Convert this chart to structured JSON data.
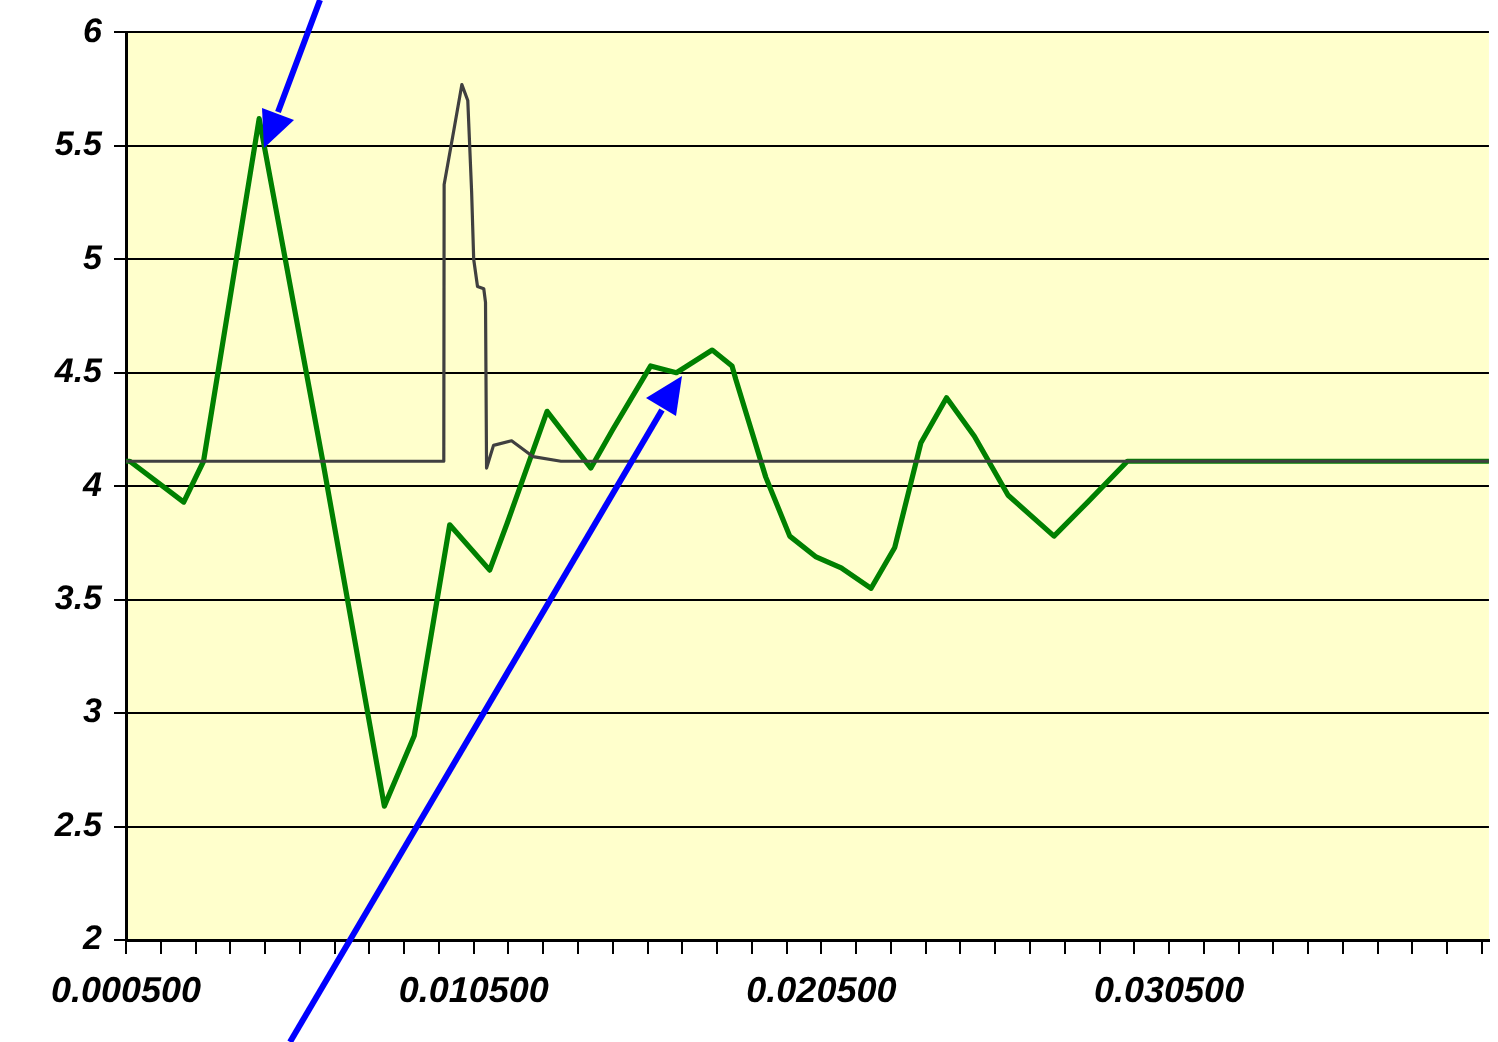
{
  "chart_data": {
    "type": "line",
    "xlim": [
      0.0005,
      0.0397
    ],
    "ylim": [
      2,
      6
    ],
    "yticks": [
      2,
      2.5,
      3,
      3.5,
      4,
      4.5,
      5,
      5.5,
      6
    ],
    "xticks": [
      {
        "value": 0.0005,
        "label": "0.000500"
      },
      {
        "value": 0.0015,
        "label": null
      },
      {
        "value": 0.0025,
        "label": null
      },
      {
        "value": 0.0035,
        "label": null
      },
      {
        "value": 0.0045,
        "label": null
      },
      {
        "value": 0.0055,
        "label": null
      },
      {
        "value": 0.0065,
        "label": null
      },
      {
        "value": 0.0075,
        "label": null
      },
      {
        "value": 0.0085,
        "label": null
      },
      {
        "value": 0.0095,
        "label": null
      },
      {
        "value": 0.0105,
        "label": "0.010500"
      },
      {
        "value": 0.0115,
        "label": null
      },
      {
        "value": 0.0125,
        "label": null
      },
      {
        "value": 0.0135,
        "label": null
      },
      {
        "value": 0.0145,
        "label": null
      },
      {
        "value": 0.0155,
        "label": null
      },
      {
        "value": 0.0165,
        "label": null
      },
      {
        "value": 0.0175,
        "label": null
      },
      {
        "value": 0.0185,
        "label": null
      },
      {
        "value": 0.0195,
        "label": null
      },
      {
        "value": 0.0205,
        "label": "0.020500"
      },
      {
        "value": 0.0215,
        "label": null
      },
      {
        "value": 0.0225,
        "label": null
      },
      {
        "value": 0.0235,
        "label": null
      },
      {
        "value": 0.0245,
        "label": null
      },
      {
        "value": 0.0255,
        "label": null
      },
      {
        "value": 0.0265,
        "label": null
      },
      {
        "value": 0.0275,
        "label": null
      },
      {
        "value": 0.0285,
        "label": null
      },
      {
        "value": 0.0295,
        "label": null
      },
      {
        "value": 0.0305,
        "label": "0.030500"
      },
      {
        "value": 0.0315,
        "label": null
      },
      {
        "value": 0.0325,
        "label": null
      },
      {
        "value": 0.0335,
        "label": null
      },
      {
        "value": 0.0345,
        "label": null
      },
      {
        "value": 0.0355,
        "label": null
      },
      {
        "value": 0.0365,
        "label": null
      },
      {
        "value": 0.0375,
        "label": null
      },
      {
        "value": 0.0385,
        "label": null
      },
      {
        "value": 0.0395,
        "label": null
      }
    ],
    "grid": "y",
    "legend": false,
    "line_style": "solid",
    "series": [
      {
        "color": "#404040",
        "x": [
          0.0005,
          0.00964,
          0.00965,
          0.00993,
          0.01016,
          0.01033,
          0.01044,
          0.0105,
          0.01061,
          0.01079,
          0.01084,
          0.01087,
          0.01107,
          0.01159,
          0.01221,
          0.01301,
          0.0397
        ],
        "values": [
          4.11,
          4.11,
          5.33,
          5.57,
          5.77,
          5.7,
          5.3,
          5.0,
          4.88,
          4.87,
          4.81,
          4.08,
          4.18,
          4.2,
          4.13,
          4.11,
          4.11
        ]
      },
      {
        "color": "#008000",
        "x": [
          0.0005,
          0.00061,
          0.00216,
          0.00273,
          0.00433,
          0.00616,
          0.00793,
          0.00879,
          0.00981,
          0.01096,
          0.01147,
          0.01261,
          0.01387,
          0.0145,
          0.01559,
          0.01633,
          0.01736,
          0.01793,
          0.01804,
          0.0189,
          0.01959,
          0.02033,
          0.02107,
          0.02193,
          0.02261,
          0.02336,
          0.0241,
          0.0249,
          0.02587,
          0.02719,
          0.02816,
          0.0293,
          0.0397
        ],
        "values": [
          4.11,
          4.11,
          3.93,
          4.11,
          5.62,
          4.11,
          2.59,
          2.9,
          3.83,
          3.63,
          3.84,
          4.33,
          4.08,
          4.25,
          4.53,
          4.5,
          4.6,
          4.53,
          4.47,
          4.04,
          3.78,
          3.69,
          3.64,
          3.55,
          3.73,
          4.19,
          4.39,
          4.22,
          3.96,
          3.78,
          3.93,
          4.11,
          4.11
        ]
      }
    ]
  }
}
